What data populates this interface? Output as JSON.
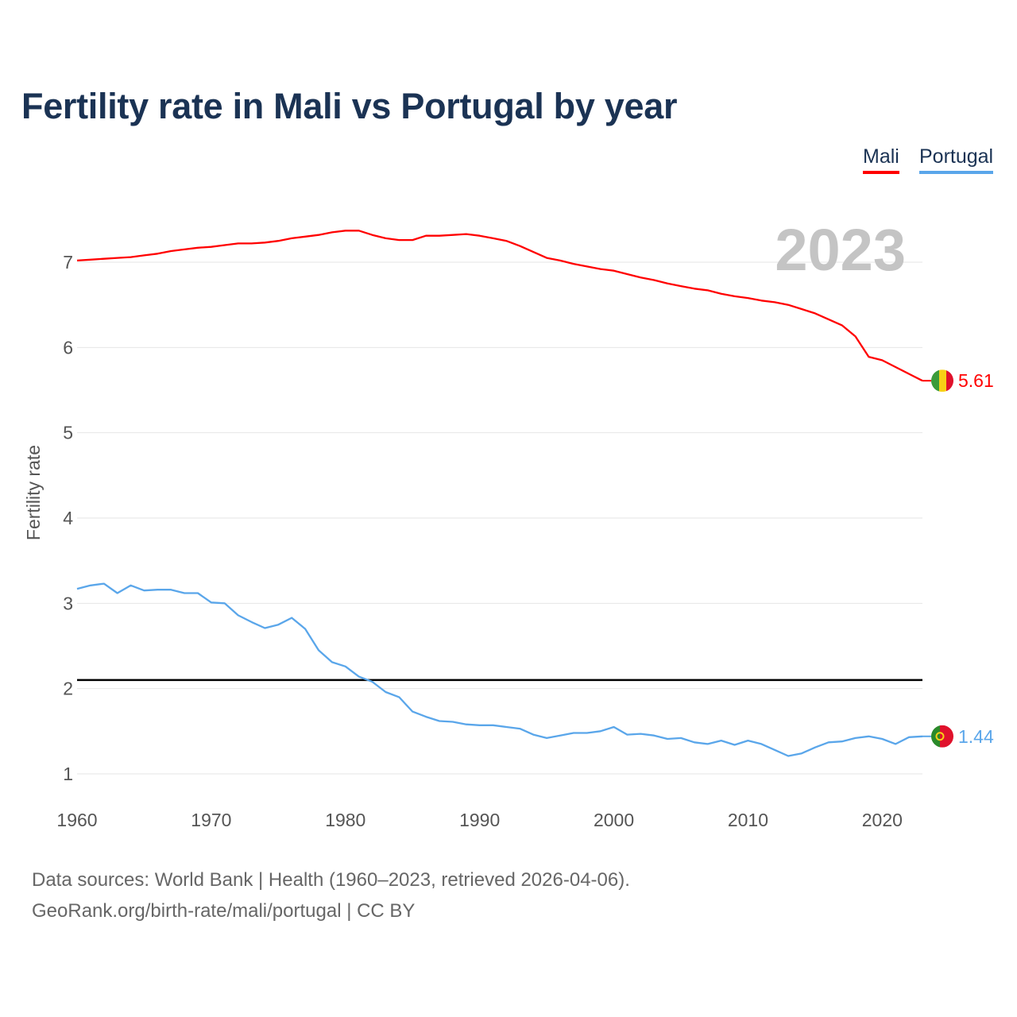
{
  "title": "Fertility rate in Mali vs Portugal by year",
  "legend": [
    {
      "label": "Mali",
      "color": "#ff0000"
    },
    {
      "label": "Portugal",
      "color": "#5aa6ea"
    }
  ],
  "year_label": "2023",
  "source_line1": "Data sources: World Bank | Health (1960–2023, retrieved 2026-04-06).",
  "source_line2": "GeoRank.org/birth-rate/mali/portugal | CC BY",
  "chart_data": {
    "type": "line",
    "title": "Fertility rate in Mali vs Portugal by year",
    "xlabel": "",
    "ylabel": "Fertility rate",
    "xlim": [
      1960,
      2023
    ],
    "ylim": [
      1,
      7
    ],
    "xticks": [
      1960,
      1970,
      1980,
      1990,
      2000,
      2010,
      2020
    ],
    "yticks": [
      1,
      2,
      3,
      4,
      5,
      6,
      7
    ],
    "grid": true,
    "legend_position": "top-right",
    "reference_line": {
      "y": 2.1,
      "color": "#000000"
    },
    "x_start": 1960,
    "series": [
      {
        "name": "Mali",
        "color": "#ff0000",
        "end_label": "5.61",
        "values": [
          7.02,
          7.03,
          7.04,
          7.05,
          7.06,
          7.08,
          7.1,
          7.13,
          7.15,
          7.17,
          7.18,
          7.2,
          7.22,
          7.22,
          7.23,
          7.25,
          7.28,
          7.3,
          7.32,
          7.35,
          7.37,
          7.37,
          7.32,
          7.28,
          7.26,
          7.26,
          7.31,
          7.31,
          7.32,
          7.33,
          7.31,
          7.28,
          7.25,
          7.19,
          7.12,
          7.05,
          7.02,
          6.98,
          6.95,
          6.92,
          6.9,
          6.86,
          6.82,
          6.79,
          6.75,
          6.72,
          6.69,
          6.67,
          6.63,
          6.6,
          6.58,
          6.55,
          6.53,
          6.5,
          6.45,
          6.4,
          6.33,
          6.26,
          6.13,
          5.89,
          5.85,
          5.77,
          5.69,
          5.61
        ]
      },
      {
        "name": "Portugal",
        "color": "#5aa6ea",
        "end_label": "1.44",
        "values": [
          3.17,
          3.21,
          3.23,
          3.12,
          3.21,
          3.15,
          3.16,
          3.16,
          3.12,
          3.12,
          3.01,
          3.0,
          2.86,
          2.78,
          2.71,
          2.75,
          2.83,
          2.7,
          2.45,
          2.31,
          2.26,
          2.14,
          2.08,
          1.96,
          1.9,
          1.73,
          1.67,
          1.62,
          1.61,
          1.58,
          1.57,
          1.57,
          1.55,
          1.53,
          1.46,
          1.42,
          1.45,
          1.48,
          1.48,
          1.5,
          1.55,
          1.46,
          1.47,
          1.45,
          1.41,
          1.42,
          1.37,
          1.35,
          1.39,
          1.34,
          1.39,
          1.35,
          1.28,
          1.21,
          1.24,
          1.31,
          1.37,
          1.38,
          1.42,
          1.44,
          1.41,
          1.35,
          1.43,
          1.44
        ]
      }
    ]
  }
}
